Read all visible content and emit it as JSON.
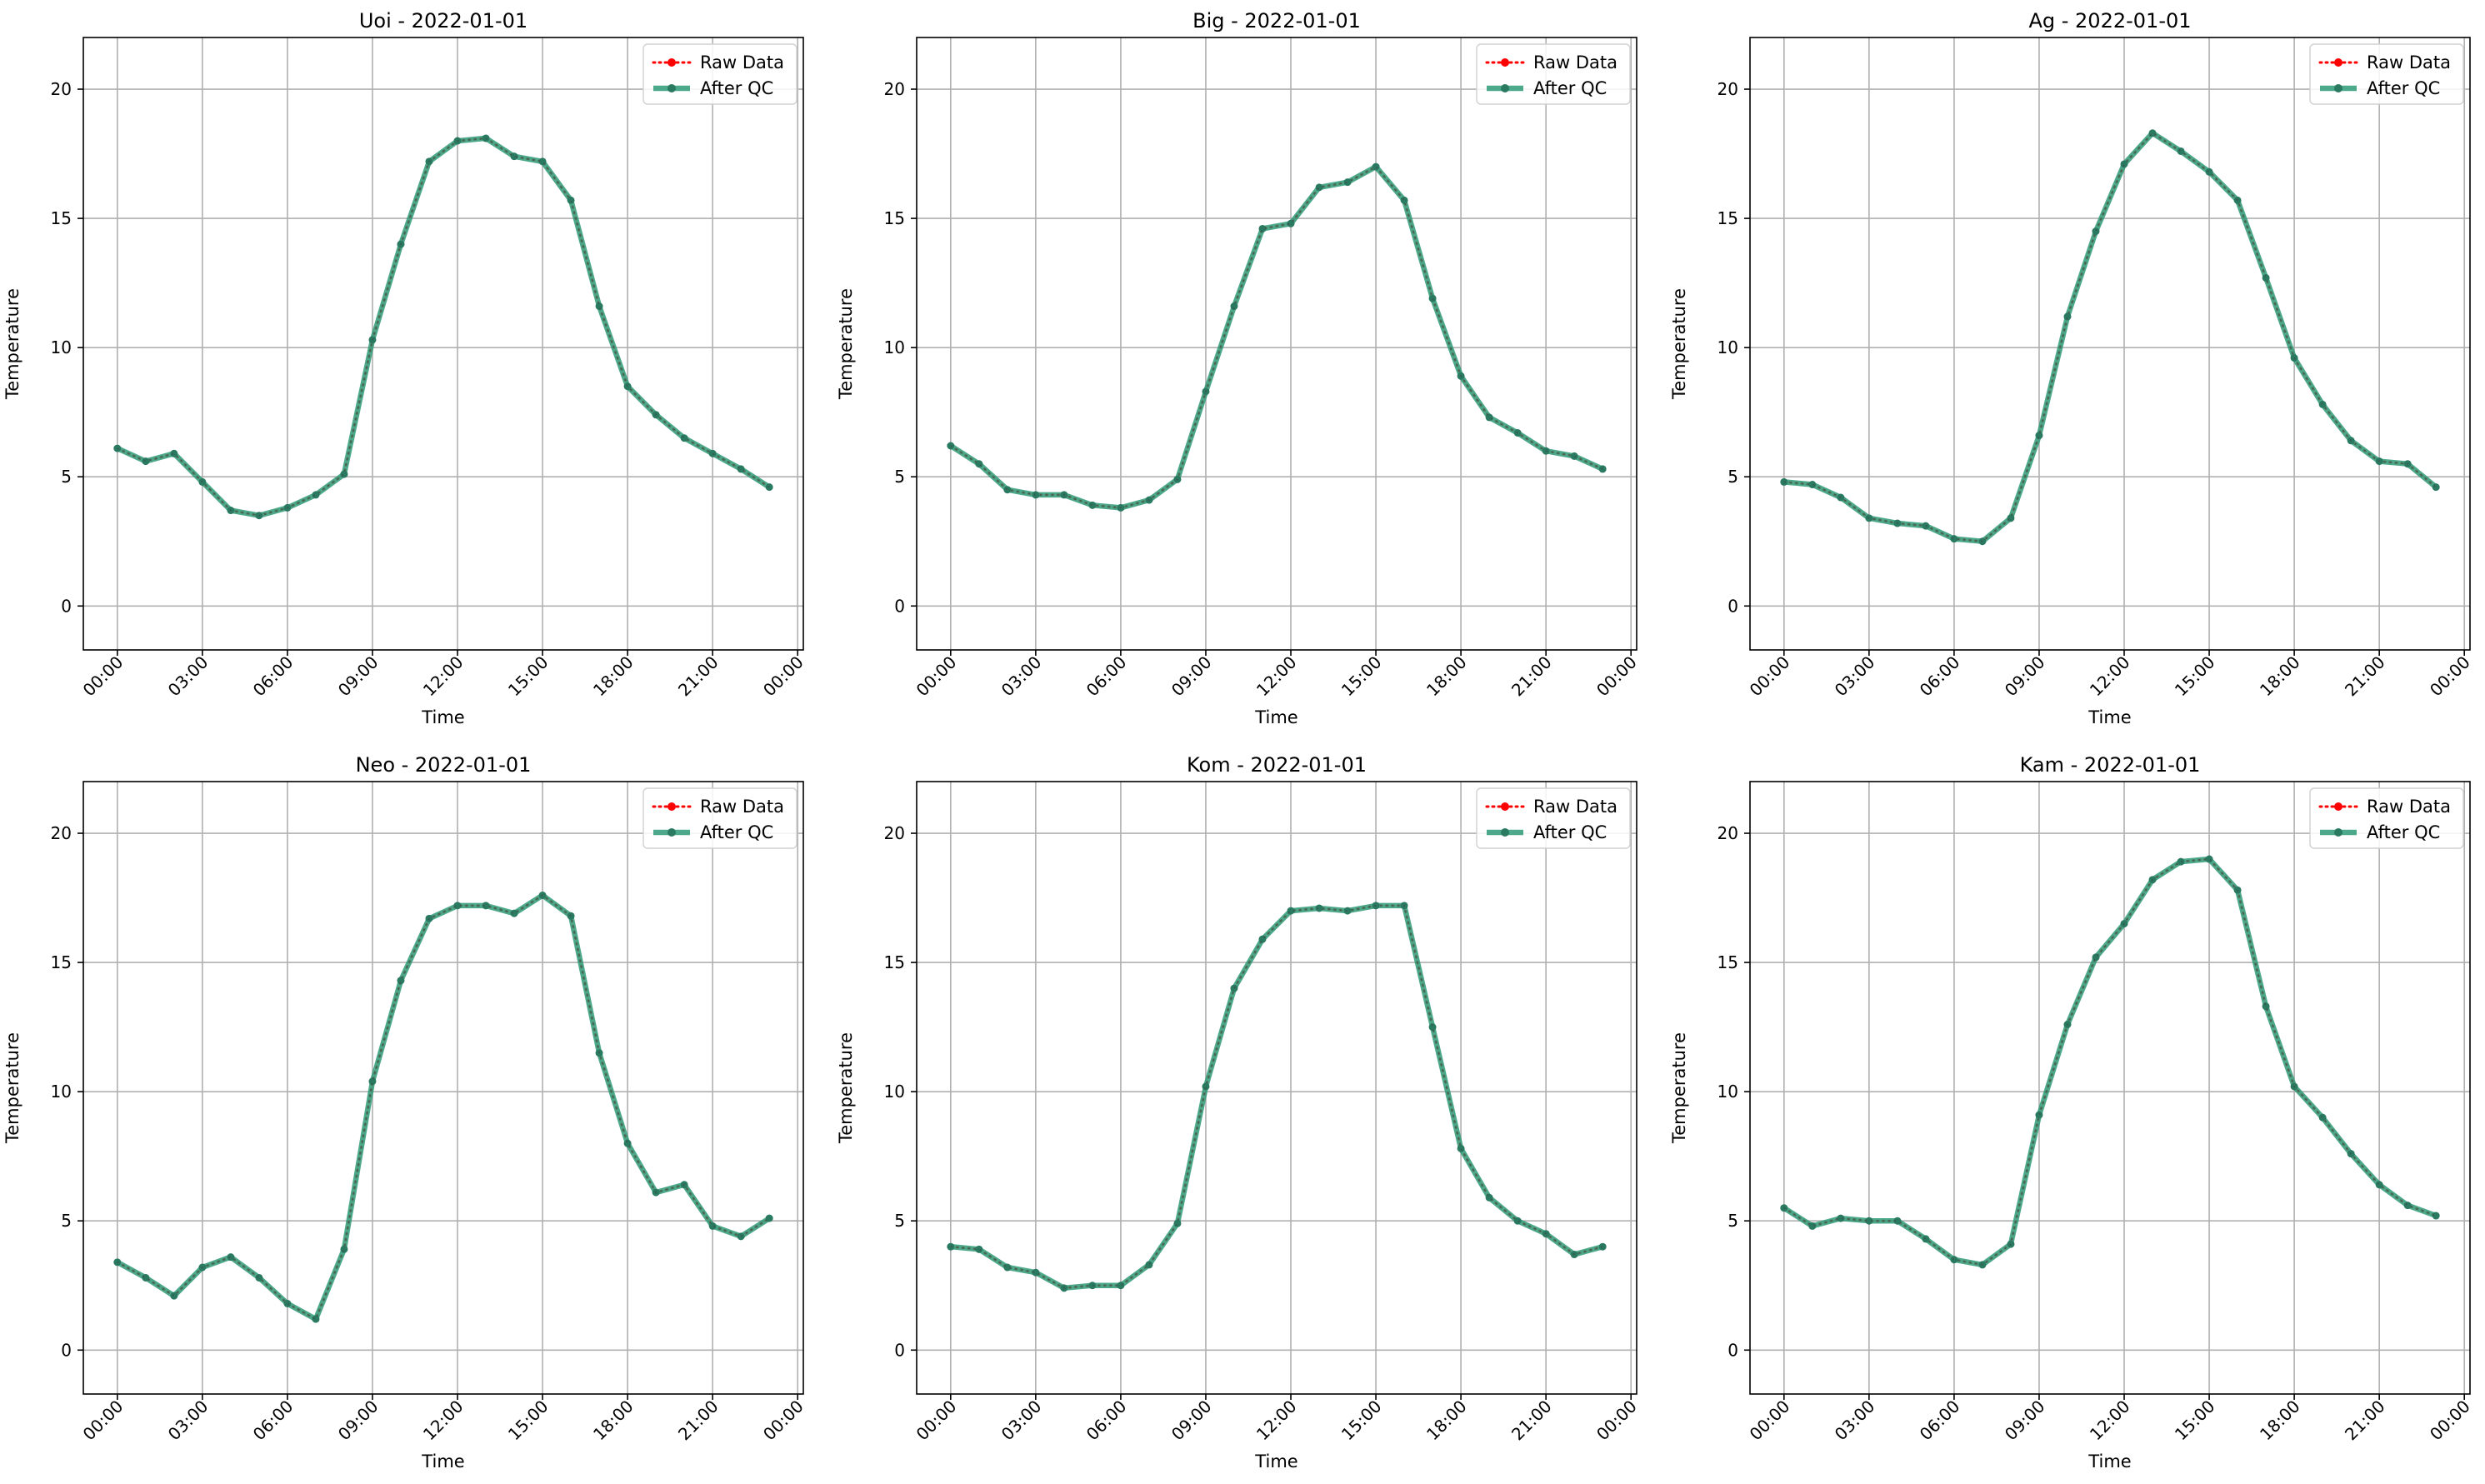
{
  "figure": {
    "background": "#ffffff"
  },
  "styles": {
    "raw_color": "#ff0000",
    "qc_color": "#2e9a78",
    "grid_color": "#b0b0b0",
    "axis_color": "#000000"
  },
  "chart_data": [
    {
      "type": "line",
      "title": "Uoi - 2022-01-01",
      "xlabel": "Time",
      "ylabel": "Temperature",
      "xticks": [
        "00:00",
        "03:00",
        "06:00",
        "09:00",
        "12:00",
        "15:00",
        "18:00",
        "21:00",
        "00:00"
      ],
      "yticks": [
        "0",
        "5",
        "10",
        "15",
        "20"
      ],
      "xlim": [
        -1.2,
        24.2
      ],
      "ylim": [
        -1.7,
        22
      ],
      "grid": true,
      "legend": {
        "location": "top-right",
        "entries": [
          "Raw Data",
          "After QC"
        ]
      },
      "x": [
        0,
        1,
        2,
        3,
        4,
        5,
        6,
        7,
        8,
        9,
        10,
        11,
        12,
        13,
        14,
        15,
        16,
        17,
        18,
        19,
        20,
        21,
        22,
        23
      ],
      "series": [
        {
          "name": "Raw Data",
          "style": "dotted-marker",
          "values": [
            6.1,
            5.6,
            5.9,
            4.8,
            3.7,
            3.5,
            3.8,
            4.3,
            5.1,
            10.3,
            14.0,
            17.2,
            18.0,
            18.1,
            17.4,
            17.2,
            15.7,
            11.6,
            8.5,
            7.4,
            6.5,
            5.9,
            5.3,
            4.6
          ]
        },
        {
          "name": "After QC",
          "style": "solid-marker",
          "values": [
            6.1,
            5.6,
            5.9,
            4.8,
            3.7,
            3.5,
            3.8,
            4.3,
            5.1,
            10.3,
            14.0,
            17.2,
            18.0,
            18.1,
            17.4,
            17.2,
            15.7,
            11.6,
            8.5,
            7.4,
            6.5,
            5.9,
            5.3,
            4.6
          ]
        }
      ]
    },
    {
      "type": "line",
      "title": "Big - 2022-01-01",
      "xlabel": "Time",
      "ylabel": "Temperature",
      "xticks": [
        "00:00",
        "03:00",
        "06:00",
        "09:00",
        "12:00",
        "15:00",
        "18:00",
        "21:00",
        "00:00"
      ],
      "yticks": [
        "0",
        "5",
        "10",
        "15",
        "20"
      ],
      "xlim": [
        -1.2,
        24.2
      ],
      "ylim": [
        -1.7,
        22
      ],
      "grid": true,
      "legend": {
        "location": "top-right",
        "entries": [
          "Raw Data",
          "After QC"
        ]
      },
      "x": [
        0,
        1,
        2,
        3,
        4,
        5,
        6,
        7,
        8,
        9,
        10,
        11,
        12,
        13,
        14,
        15,
        16,
        17,
        18,
        19,
        20,
        21,
        22,
        23
      ],
      "series": [
        {
          "name": "Raw Data",
          "style": "dotted-marker",
          "values": [
            6.2,
            5.5,
            4.5,
            4.3,
            4.3,
            3.9,
            3.8,
            4.1,
            4.9,
            8.3,
            11.6,
            14.6,
            14.8,
            16.2,
            16.4,
            17.0,
            15.7,
            11.9,
            8.9,
            7.3,
            6.7,
            6.0,
            5.8,
            5.3
          ]
        },
        {
          "name": "After QC",
          "style": "solid-marker",
          "values": [
            6.2,
            5.5,
            4.5,
            4.3,
            4.3,
            3.9,
            3.8,
            4.1,
            4.9,
            8.3,
            11.6,
            14.6,
            14.8,
            16.2,
            16.4,
            17.0,
            15.7,
            11.9,
            8.9,
            7.3,
            6.7,
            6.0,
            5.8,
            5.3
          ]
        }
      ]
    },
    {
      "type": "line",
      "title": "Ag - 2022-01-01",
      "xlabel": "Time",
      "ylabel": "Temperature",
      "xticks": [
        "00:00",
        "03:00",
        "06:00",
        "09:00",
        "12:00",
        "15:00",
        "18:00",
        "21:00",
        "00:00"
      ],
      "yticks": [
        "0",
        "5",
        "10",
        "15",
        "20"
      ],
      "xlim": [
        -1.2,
        24.2
      ],
      "ylim": [
        -1.7,
        22
      ],
      "grid": true,
      "legend": {
        "location": "top-right",
        "entries": [
          "Raw Data",
          "After QC"
        ]
      },
      "x": [
        0,
        1,
        2,
        3,
        4,
        5,
        6,
        7,
        8,
        9,
        10,
        11,
        12,
        13,
        14,
        15,
        16,
        17,
        18,
        19,
        20,
        21,
        22,
        23
      ],
      "series": [
        {
          "name": "Raw Data",
          "style": "dotted-marker",
          "values": [
            4.8,
            4.7,
            4.2,
            3.4,
            3.2,
            3.1,
            2.6,
            2.5,
            3.4,
            6.6,
            11.2,
            14.5,
            17.1,
            18.3,
            17.6,
            16.8,
            15.7,
            12.7,
            9.6,
            7.8,
            6.4,
            5.6,
            5.5,
            4.6
          ]
        },
        {
          "name": "After QC",
          "style": "solid-marker",
          "values": [
            4.8,
            4.7,
            4.2,
            3.4,
            3.2,
            3.1,
            2.6,
            2.5,
            3.4,
            6.6,
            11.2,
            14.5,
            17.1,
            18.3,
            17.6,
            16.8,
            15.7,
            12.7,
            9.6,
            7.8,
            6.4,
            5.6,
            5.5,
            4.6
          ]
        }
      ]
    },
    {
      "type": "line",
      "title": "Neo - 2022-01-01",
      "xlabel": "Time",
      "ylabel": "Temperature",
      "xticks": [
        "00:00",
        "03:00",
        "06:00",
        "09:00",
        "12:00",
        "15:00",
        "18:00",
        "21:00",
        "00:00"
      ],
      "yticks": [
        "0",
        "5",
        "10",
        "15",
        "20"
      ],
      "xlim": [
        -1.2,
        24.2
      ],
      "ylim": [
        -1.7,
        22
      ],
      "grid": true,
      "legend": {
        "location": "top-right",
        "entries": [
          "Raw Data",
          "After QC"
        ]
      },
      "x": [
        0,
        1,
        2,
        3,
        4,
        5,
        6,
        7,
        8,
        9,
        10,
        11,
        12,
        13,
        14,
        15,
        16,
        17,
        18,
        19,
        20,
        21,
        22,
        23
      ],
      "series": [
        {
          "name": "Raw Data",
          "style": "dotted-marker",
          "values": [
            3.4,
            2.8,
            2.1,
            3.2,
            3.6,
            2.8,
            1.8,
            1.2,
            3.9,
            10.4,
            14.3,
            16.7,
            17.2,
            17.2,
            16.9,
            17.6,
            16.8,
            11.5,
            8.0,
            6.1,
            6.4,
            4.8,
            4.4,
            5.1
          ]
        },
        {
          "name": "After QC",
          "style": "solid-marker",
          "values": [
            3.4,
            2.8,
            2.1,
            3.2,
            3.6,
            2.8,
            1.8,
            1.2,
            3.9,
            10.4,
            14.3,
            16.7,
            17.2,
            17.2,
            16.9,
            17.6,
            16.8,
            11.5,
            8.0,
            6.1,
            6.4,
            4.8,
            4.4,
            5.1
          ]
        }
      ]
    },
    {
      "type": "line",
      "title": "Kom - 2022-01-01",
      "xlabel": "Time",
      "ylabel": "Temperature",
      "xticks": [
        "00:00",
        "03:00",
        "06:00",
        "09:00",
        "12:00",
        "15:00",
        "18:00",
        "21:00",
        "00:00"
      ],
      "yticks": [
        "0",
        "5",
        "10",
        "15",
        "20"
      ],
      "xlim": [
        -1.2,
        24.2
      ],
      "ylim": [
        -1.7,
        22
      ],
      "grid": true,
      "legend": {
        "location": "top-right",
        "entries": [
          "Raw Data",
          "After QC"
        ]
      },
      "x": [
        0,
        1,
        2,
        3,
        4,
        5,
        6,
        7,
        8,
        9,
        10,
        11,
        12,
        13,
        14,
        15,
        16,
        17,
        18,
        19,
        20,
        21,
        22,
        23
      ],
      "series": [
        {
          "name": "Raw Data",
          "style": "dotted-marker",
          "values": [
            4.0,
            3.9,
            3.2,
            3.0,
            2.4,
            2.5,
            2.5,
            3.3,
            4.9,
            10.2,
            14.0,
            15.9,
            17.0,
            17.1,
            17.0,
            17.2,
            17.2,
            12.5,
            7.8,
            5.9,
            5.0,
            4.5,
            3.7,
            4.0
          ]
        },
        {
          "name": "After QC",
          "style": "solid-marker",
          "values": [
            4.0,
            3.9,
            3.2,
            3.0,
            2.4,
            2.5,
            2.5,
            3.3,
            4.9,
            10.2,
            14.0,
            15.9,
            17.0,
            17.1,
            17.0,
            17.2,
            17.2,
            12.5,
            7.8,
            5.9,
            5.0,
            4.5,
            3.7,
            4.0
          ]
        }
      ]
    },
    {
      "type": "line",
      "title": "Kam - 2022-01-01",
      "xlabel": "Time",
      "ylabel": "Temperature",
      "xticks": [
        "00:00",
        "03:00",
        "06:00",
        "09:00",
        "12:00",
        "15:00",
        "18:00",
        "21:00",
        "00:00"
      ],
      "yticks": [
        "0",
        "5",
        "10",
        "15",
        "20"
      ],
      "xlim": [
        -1.2,
        24.2
      ],
      "ylim": [
        -1.7,
        22
      ],
      "grid": true,
      "legend": {
        "location": "top-right",
        "entries": [
          "Raw Data",
          "After QC"
        ]
      },
      "x": [
        0,
        1,
        2,
        3,
        4,
        5,
        6,
        7,
        8,
        9,
        10,
        11,
        12,
        13,
        14,
        15,
        16,
        17,
        18,
        19,
        20,
        21,
        22,
        23
      ],
      "series": [
        {
          "name": "Raw Data",
          "style": "dotted-marker",
          "values": [
            5.5,
            4.8,
            5.1,
            5.0,
            5.0,
            4.3,
            3.5,
            3.3,
            4.1,
            9.1,
            12.6,
            15.2,
            16.5,
            18.2,
            18.9,
            19.0,
            17.8,
            13.3,
            10.2,
            9.0,
            7.6,
            6.4,
            5.6,
            5.2
          ]
        },
        {
          "name": "After QC",
          "style": "solid-marker",
          "values": [
            5.5,
            4.8,
            5.1,
            5.0,
            5.0,
            4.3,
            3.5,
            3.3,
            4.1,
            9.1,
            12.6,
            15.2,
            16.5,
            18.2,
            18.9,
            19.0,
            17.8,
            13.3,
            10.2,
            9.0,
            7.6,
            6.4,
            5.6,
            5.2
          ]
        }
      ]
    }
  ]
}
